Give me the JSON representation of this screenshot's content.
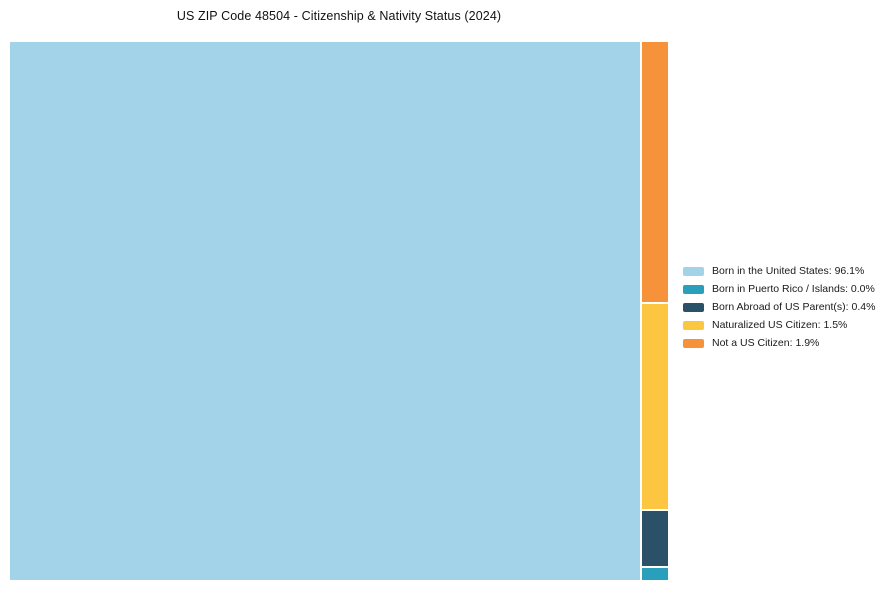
{
  "title": "US ZIP Code 48504 - Citizenship & Nativity Status (2024)",
  "chart_data": {
    "type": "treemap",
    "title": "US ZIP Code 48504 - Citizenship & Nativity Status (2024)",
    "legend_position": "right",
    "series": [
      {
        "label": "Born in the United States",
        "value": 96.1,
        "color": "#a3d3e8",
        "legend_text": "Born in the United States: 96.1%"
      },
      {
        "label": "Born in Puerto Rico / Islands",
        "value": 0.0,
        "color": "#2a9fbc",
        "legend_text": "Born in Puerto Rico / Islands: 0.0%"
      },
      {
        "label": "Born Abroad of US Parent(s)",
        "value": 0.4,
        "color": "#2b5168",
        "legend_text": "Born Abroad of US Parent(s): 0.4%"
      },
      {
        "label": "Naturalized US Citizen",
        "value": 1.5,
        "color": "#fdc640",
        "legend_text": "Naturalized US Citizen: 1.5%"
      },
      {
        "label": "Not a US Citizen",
        "value": 1.9,
        "color": "#f6923a",
        "legend_text": "Not a US Citizen: 1.9%"
      }
    ],
    "column_order_top_to_bottom": [
      "Not a US Citizen",
      "Naturalized US Citizen",
      "Born Abroad of US Parent(s)",
      "Born in Puerto Rico / Islands"
    ]
  }
}
